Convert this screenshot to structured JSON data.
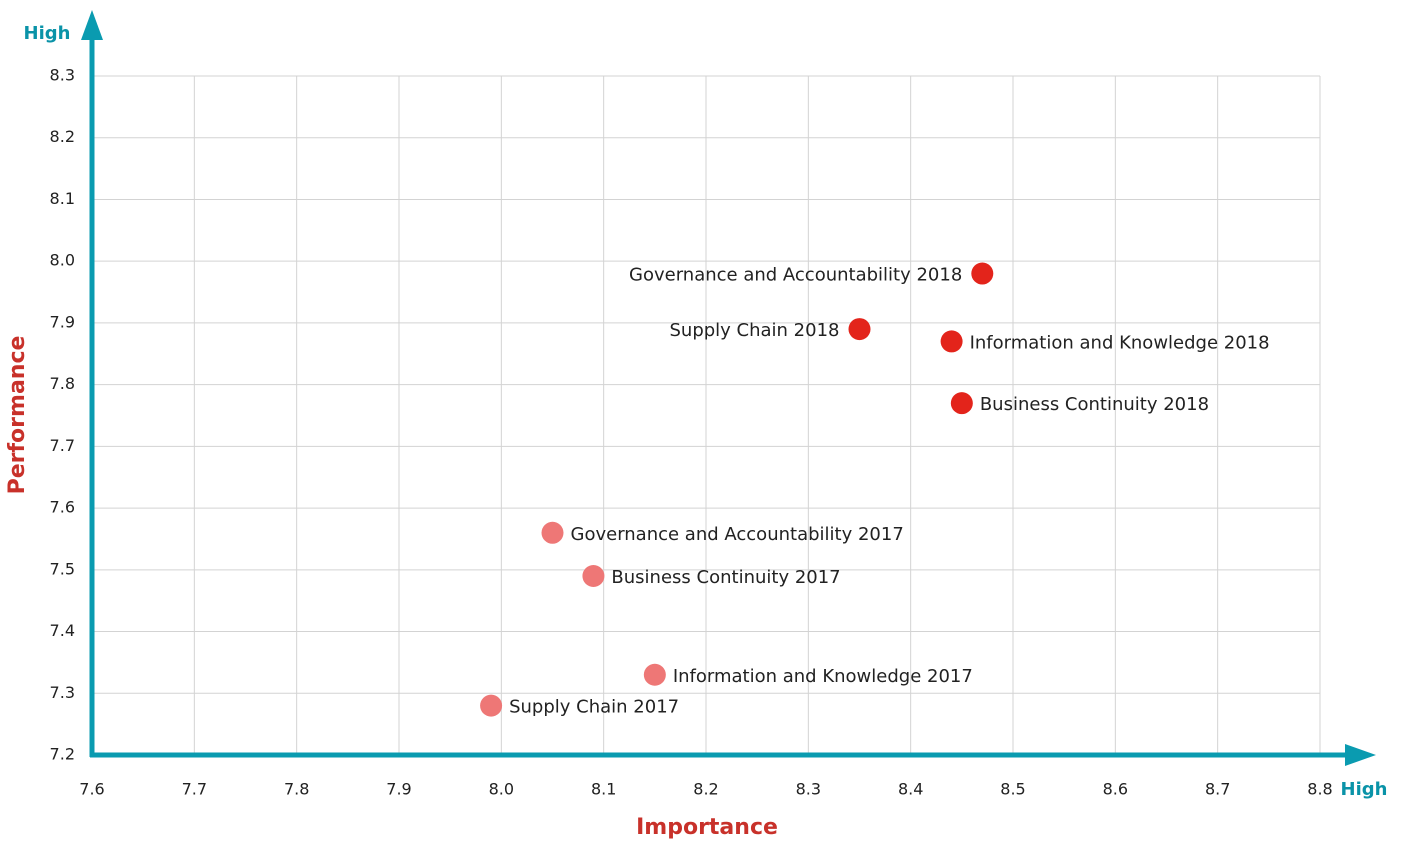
{
  "chart_data": {
    "type": "scatter",
    "x_label": "Importance",
    "y_label": "Performance",
    "x_high_label": "High",
    "y_high_label": "High",
    "xlim": [
      7.6,
      8.8
    ],
    "ylim": [
      7.2,
      8.3
    ],
    "xticks": [
      7.6,
      7.7,
      7.8,
      7.9,
      {
        "value": 8,
        "label": "8.0"
      },
      8.1,
      8.2,
      8.3,
      8.4,
      8.5,
      8.6,
      8.7,
      8.8
    ],
    "yticks": [
      7.2,
      7.3,
      7.4,
      7.5,
      7.6,
      7.7,
      7.8,
      7.9,
      {
        "value": 8,
        "label": "8.0"
      },
      8.1,
      8.2,
      8.3
    ],
    "grid": true,
    "axis_color": "#0a9bb0",
    "series": [
      {
        "color": "#ee7776",
        "labels": [
          "Governance and Accountability 2017",
          "Business Continuity 2017",
          "Information and Knowledge 2017",
          "Supply Chain 2017"
        ],
        "x": [
          8.05,
          8.09,
          8.15,
          7.99
        ],
        "y": [
          7.56,
          7.49,
          7.33,
          7.28
        ]
      },
      {
        "color": "#e3241b",
        "labels": [
          "Governance and Accountability 2018",
          "Supply Chain 2018",
          "Information and Knowledge 2018",
          "Business Continuity 2018"
        ],
        "x": [
          8.47,
          8.35,
          8.44,
          8.45
        ],
        "y": [
          7.98,
          7.89,
          7.87,
          7.77
        ]
      }
    ]
  }
}
